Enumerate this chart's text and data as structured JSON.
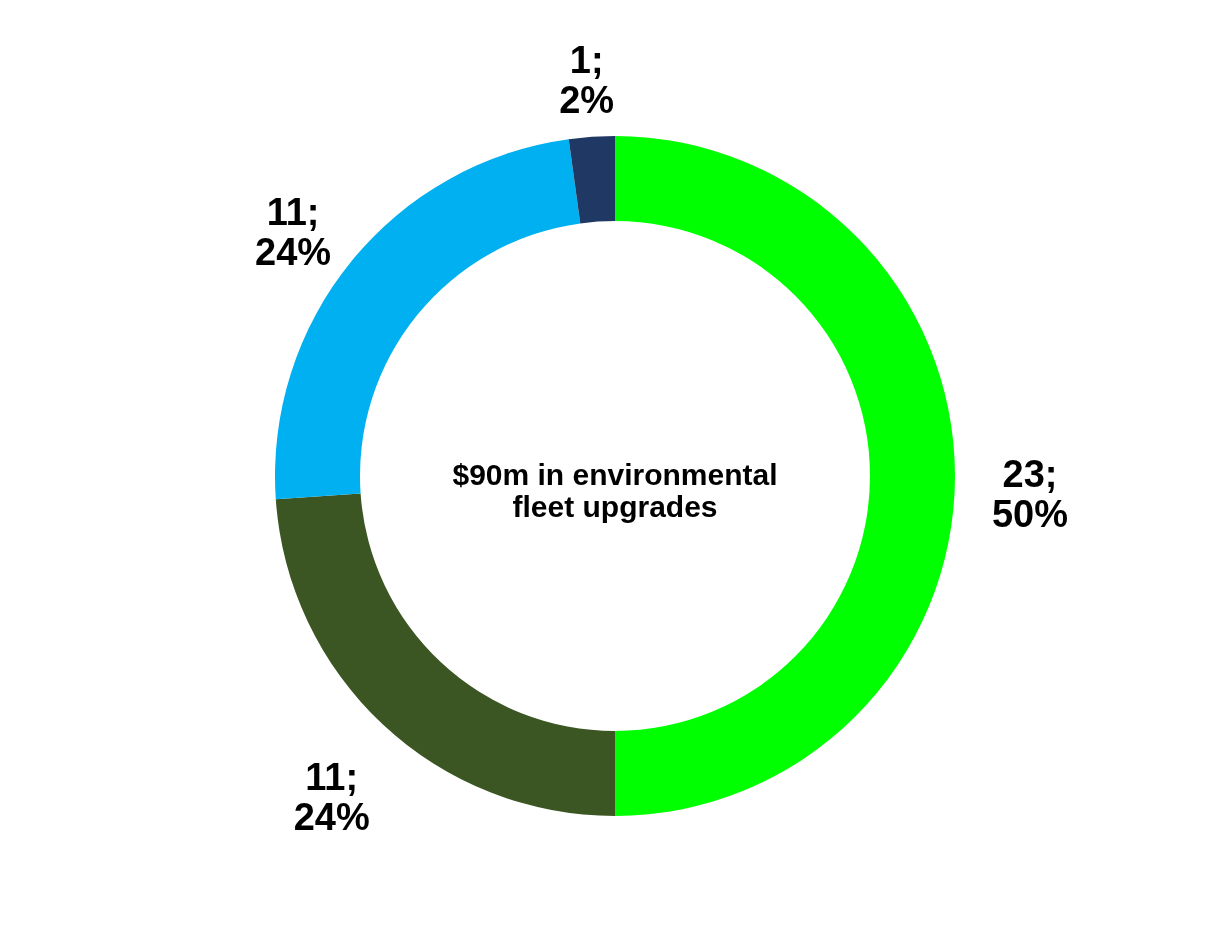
{
  "chart_data": {
    "type": "donut",
    "categories": [
      null,
      null,
      null,
      null
    ],
    "values": [
      23,
      11,
      11,
      1
    ],
    "colors": [
      "#00ff00",
      "#3b5623",
      "#00b0f0",
      "#1f3864"
    ],
    "value_labels": [
      "23;\n50%",
      "11;\n24%",
      "11;\n24%",
      "1;\n2%"
    ],
    "annotations": [
      "$90m in environmental\nfleet upgrades"
    ]
  }
}
